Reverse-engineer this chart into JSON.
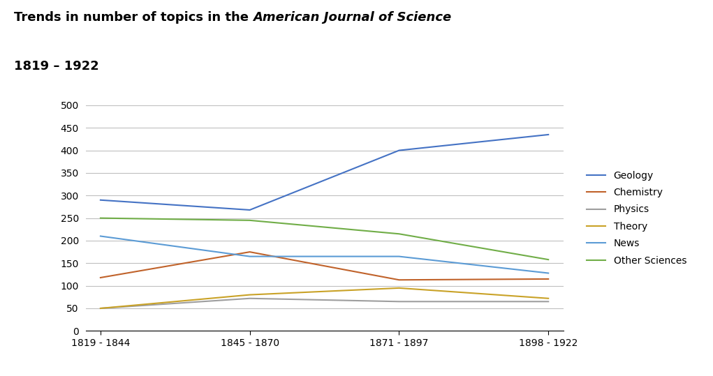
{
  "title_plain": "Trends in number of topics in the ",
  "title_italic": "American Journal of Science",
  "title_line2": "1819 – 1922",
  "x_labels": [
    "1819 - 1844",
    "1845 - 1870",
    "1871 - 1897",
    "1898 - 1922"
  ],
  "series": {
    "Geology": {
      "values": [
        290,
        268,
        400,
        435
      ],
      "color": "#4472C4"
    },
    "Chemistry": {
      "values": [
        118,
        175,
        113,
        115
      ],
      "color": "#C0622A"
    },
    "Physics": {
      "values": [
        50,
        72,
        65,
        65
      ],
      "color": "#9E9E9E"
    },
    "Theory": {
      "values": [
        50,
        80,
        95,
        72
      ],
      "color": "#C9A227"
    },
    "News": {
      "values": [
        210,
        165,
        165,
        128
      ],
      "color": "#5B9BD5"
    },
    "Other Sciences": {
      "values": [
        250,
        245,
        215,
        158
      ],
      "color": "#70AD47"
    }
  },
  "ylim": [
    0,
    500
  ],
  "yticks": [
    0,
    50,
    100,
    150,
    200,
    250,
    300,
    350,
    400,
    450,
    500
  ],
  "background_color": "#FFFFFF",
  "grid_color": "#BFBFBF"
}
